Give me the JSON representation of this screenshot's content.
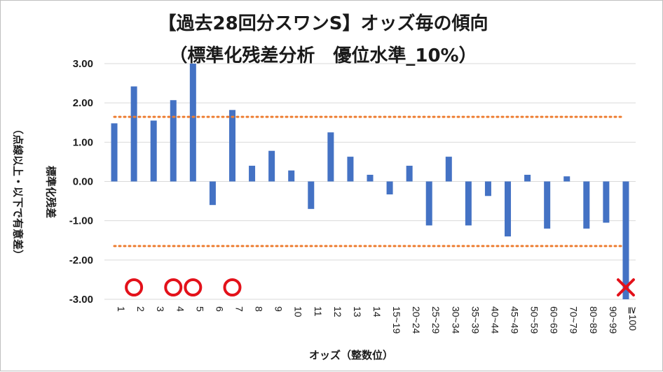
{
  "chart_data": {
    "type": "bar",
    "title": "【過去28回分スワンS】オッズ毎の傾向",
    "subtitle": "（標準化残差分析　優位水準_10%）",
    "ylabel": "標準化残差",
    "ylabel_note": "（点線以上・以下で有意差）",
    "xlabel": "オッズ（整数位）",
    "ylim": [
      -3.0,
      3.0
    ],
    "yticks": [
      "3.00",
      "2.00",
      "1.00",
      "0.00",
      "-1.00",
      "-2.00",
      "-3.00"
    ],
    "ytick_values": [
      3,
      2,
      1,
      0,
      -1,
      -2,
      -3
    ],
    "categories": [
      "1",
      "2",
      "3",
      "4",
      "5",
      "6",
      "7",
      "8",
      "9",
      "10",
      "11",
      "12",
      "13",
      "14",
      "15~19",
      "20~24",
      "25~29",
      "30~34",
      "35~39",
      "40~44",
      "45~49",
      "50~59",
      "60~69",
      "70~79",
      "80~89",
      "90~99",
      "≧100"
    ],
    "values": [
      1.48,
      2.42,
      1.55,
      2.07,
      3.0,
      -0.6,
      1.82,
      0.4,
      0.78,
      0.28,
      -0.7,
      1.25,
      0.63,
      0.17,
      -0.33,
      0.4,
      -1.12,
      0.63,
      -1.12,
      -0.37,
      -1.4,
      0.17,
      -1.2,
      0.13,
      -1.2,
      -1.05,
      -3.0
    ],
    "threshold_lines": [
      1.645,
      -1.645
    ],
    "circle_markers": [
      "2",
      "4",
      "5",
      "7"
    ],
    "cross_markers": [
      "≧100"
    ],
    "grid": true,
    "colors": {
      "bar": "#4472c4",
      "threshold": "#ed7d31",
      "grid": "#d9d9d9",
      "marker": "#e3111a"
    }
  }
}
